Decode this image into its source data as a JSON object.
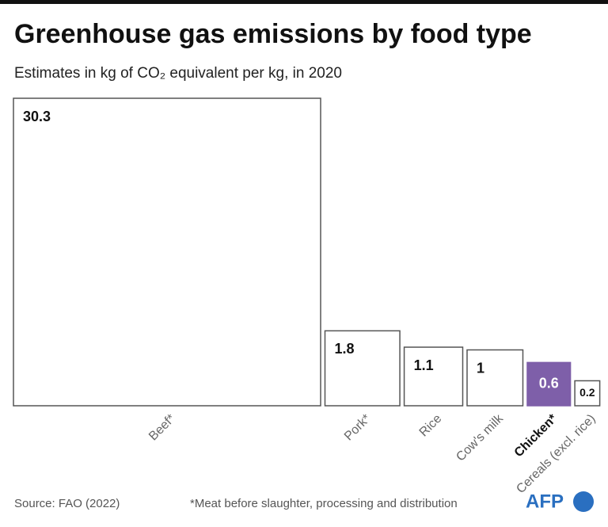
{
  "chart_data": {
    "type": "area-squares",
    "title": "Greenhouse gas emissions by food type",
    "subtitle": "Estimates in kg of CO₂ equivalent per kg, in 2020",
    "categories": [
      "Beef*",
      "Pork*",
      "Rice",
      "Cow's milk",
      "Chicken*",
      "Cereals (excl. rice)"
    ],
    "values": [
      30.3,
      1.8,
      1.1,
      1,
      0.6,
      0.2
    ],
    "colors": [
      "#ffffff",
      "#ffffff",
      "#ffffff",
      "#ffffff",
      "#7e5fa9",
      "#ffffff"
    ],
    "source": "Source: FAO (2022)",
    "note": "*Meat before slaughter, processing and distribution",
    "logo": "AFP"
  }
}
